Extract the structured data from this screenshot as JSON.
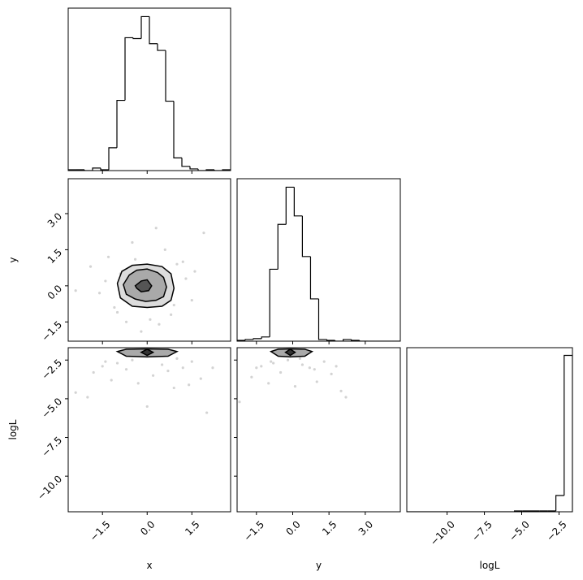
{
  "chart_data": [
    {
      "type": "histogram",
      "xlim": [
        -2.65,
        2.8
      ],
      "ylim": [
        0,
        192
      ],
      "color": "#000000",
      "xticks": [
        {
          "value": -1.5,
          "label": "−1.5"
        },
        {
          "value": 0,
          "label": "0.0"
        },
        1.5
      ],
      "xticklabels": false,
      "bins": [
        -2.65,
        -2.3775,
        -2.105,
        -1.8325,
        -1.56,
        -1.2875,
        -1.015,
        -0.7425,
        -0.47,
        -0.1975,
        0.075,
        0.3475,
        0.62,
        0.8925,
        1.165,
        1.4375,
        1.71,
        1.9825,
        2.255,
        2.5275,
        2.8
      ],
      "values": [
        1,
        1,
        0,
        3,
        1,
        27,
        83,
        157,
        156,
        182,
        150,
        142,
        82,
        15,
        5,
        2,
        0,
        1,
        0,
        1
      ]
    },
    {
      "type": "scatter",
      "ylabel": "y",
      "xlim": [
        -2.65,
        2.8
      ],
      "ylim": [
        -2.3,
        4.45
      ],
      "color": "#808080",
      "xticks": [
        {
          "value": -1.5,
          "label": "−1.5"
        },
        {
          "value": 0,
          "label": "0.0"
        },
        1.5
      ],
      "xticklabels": false,
      "yticks": [
        {
          "value": -1.5,
          "label": "−1.5"
        },
        {
          "value": 0,
          "label": "0.0"
        },
        1.5,
        {
          "value": 3,
          "label": "3.0"
        }
      ],
      "yticklabels": true,
      "x": [
        -1.9,
        -1.6,
        -1.3,
        -1.1,
        -0.9,
        -0.7,
        -0.5,
        -1.4,
        1.2,
        1.5,
        1.0,
        0.8,
        0.3,
        -0.2,
        0.6,
        1.9,
        -2.4,
        1.3,
        0.1,
        -0.4,
        0.9,
        -1.0,
        1.6,
        0.4
      ],
      "y": [
        0.8,
        -0.3,
        1.2,
        -0.9,
        0.5,
        -1.5,
        1.8,
        0.2,
        1.0,
        -0.6,
        0.9,
        -1.2,
        2.4,
        -1.9,
        1.5,
        2.2,
        -0.2,
        0.3,
        -1.4,
        1.1,
        -0.8,
        -1.1,
        0.6,
        -1.6
      ],
      "contours": [
        {
          "fill": "#dcdcdc",
          "x": [
            -1.0,
            -0.85,
            -0.5,
            0.0,
            0.5,
            0.8,
            0.9,
            0.8,
            0.5,
            0.0,
            -0.5,
            -0.9
          ],
          "y": [
            0.1,
            0.6,
            0.85,
            0.9,
            0.8,
            0.5,
            -0.1,
            -0.6,
            -0.85,
            -0.9,
            -0.85,
            -0.5
          ]
        },
        {
          "fill": "#a9a9a9",
          "x": [
            -0.8,
            -0.6,
            -0.35,
            0.0,
            0.35,
            0.55,
            0.65,
            0.55,
            0.3,
            -0.05,
            -0.4,
            -0.7
          ],
          "y": [
            0.05,
            0.45,
            0.65,
            0.7,
            0.55,
            0.35,
            -0.05,
            -0.45,
            -0.6,
            -0.65,
            -0.55,
            -0.35
          ]
        },
        {
          "fill": "#555555",
          "x": [
            -0.4,
            -0.2,
            0.0,
            0.15,
            0.05,
            -0.2,
            -0.35
          ],
          "y": [
            0.0,
            0.2,
            0.25,
            0.0,
            -0.2,
            -0.25,
            -0.1
          ]
        }
      ]
    },
    {
      "type": "histogram",
      "xlim": [
        -2.3,
        4.45
      ],
      "ylim": [
        0,
        192
      ],
      "color": "#000000",
      "xticks": [
        {
          "value": -1.5,
          "label": "−1.5"
        },
        {
          "value": 0,
          "label": "0.0"
        },
        1.5,
        {
          "value": 3,
          "label": "3.0"
        }
      ],
      "xticklabels": false,
      "bins": [
        -2.3,
        -1.9625,
        -1.625,
        -1.2875,
        -0.95,
        -0.6125,
        -0.275,
        0.0625,
        0.4,
        0.7375,
        1.075,
        1.4125,
        1.75,
        2.0875,
        2.425,
        2.7625,
        3.1,
        3.4375,
        3.775,
        4.1125,
        4.45
      ],
      "values": [
        1,
        2,
        3,
        5,
        85,
        138,
        182,
        148,
        100,
        50,
        2,
        1,
        0,
        2,
        1,
        0,
        0,
        0,
        0,
        0
      ]
    },
    {
      "type": "scatter",
      "xlabel": "x",
      "ylabel": "logL",
      "xlim": [
        -2.65,
        2.8
      ],
      "ylim": [
        -12.3,
        -1.7
      ],
      "color": "#808080",
      "xticks": [
        {
          "value": -1.5,
          "label": "−1.5"
        },
        {
          "value": 0,
          "label": "0.0"
        },
        1.5
      ],
      "xticklabels": true,
      "yticks": [
        {
          "value": -10,
          "label": "−10.0"
        },
        {
          "value": -7.5,
          "label": "−7.5"
        },
        {
          "value": -5,
          "label": "−5.0"
        },
        {
          "value": -2.5,
          "label": "−2.5"
        }
      ],
      "yticklabels": true,
      "x": [
        -2.4,
        -1.8,
        -1.5,
        -1.2,
        -1.0,
        -0.7,
        -0.3,
        0.2,
        0.5,
        0.9,
        1.2,
        1.5,
        1.8,
        2.0,
        -0.5,
        0.7,
        1.4,
        -1.4,
        0.0,
        2.2,
        -2.0,
        1.0
      ],
      "y": [
        -4.6,
        -3.3,
        -2.9,
        -3.8,
        -2.7,
        -3.1,
        -4.0,
        -3.5,
        -2.8,
        -4.3,
        -3.0,
        -2.6,
        -3.7,
        -5.9,
        -2.5,
        -3.2,
        -4.1,
        -2.6,
        -5.5,
        -3.0,
        -4.9,
        -2.4
      ],
      "contours": [
        {
          "fill": "#a9a9a9",
          "x": [
            -1.0,
            -0.7,
            0.0,
            0.7,
            1.0,
            0.7,
            0.0,
            -0.7
          ],
          "y": [
            -1.95,
            -1.8,
            -1.78,
            -1.8,
            -1.95,
            -2.25,
            -2.3,
            -2.25
          ]
        },
        {
          "fill": "#333333",
          "x": [
            -0.2,
            0.0,
            0.2,
            0.0
          ],
          "y": [
            -2.0,
            -1.8,
            -2.0,
            -2.2
          ]
        }
      ]
    },
    {
      "type": "scatter",
      "xlabel": "y",
      "xlim": [
        -2.3,
        4.45
      ],
      "ylim": [
        -12.3,
        -1.7
      ],
      "color": "#808080",
      "xticks": [
        {
          "value": -1.5,
          "label": "−1.5"
        },
        {
          "value": 0,
          "label": "0.0"
        },
        1.5,
        {
          "value": 3,
          "label": "3.0"
        }
      ],
      "xticklabels": true,
      "yticks": [
        {
          "value": -10,
          "label": "−10.0"
        },
        {
          "value": -7.5,
          "label": "−7.5"
        },
        {
          "value": -5,
          "label": "−5.0"
        },
        {
          "value": -2.5,
          "label": "−2.5"
        }
      ],
      "yticklabels": false,
      "x": [
        -2.2,
        -1.7,
        -1.3,
        -1.0,
        -0.8,
        -0.5,
        0.1,
        0.4,
        0.7,
        1.0,
        1.3,
        1.6,
        2.0,
        2.2,
        -0.2,
        0.9,
        -1.5,
        0.3,
        1.8,
        -0.9
      ],
      "y": [
        -5.2,
        -3.6,
        -2.9,
        -4.0,
        -2.7,
        -3.3,
        -4.2,
        -2.8,
        -3.0,
        -3.9,
        -2.6,
        -3.4,
        -4.5,
        -4.9,
        -2.5,
        -3.1,
        -3.0,
        -2.4,
        -2.9,
        -2.6
      ],
      "contours": [
        {
          "fill": "#a9a9a9",
          "x": [
            -0.9,
            -0.6,
            -0.1,
            0.5,
            0.8,
            0.5,
            -0.1,
            -0.6
          ],
          "y": [
            -1.95,
            -1.8,
            -1.78,
            -1.8,
            -1.95,
            -2.25,
            -2.3,
            -2.25
          ]
        },
        {
          "fill": "#333333",
          "x": [
            -0.3,
            -0.1,
            0.1,
            -0.1
          ],
          "y": [
            -2.0,
            -1.8,
            -2.0,
            -2.2
          ]
        }
      ]
    },
    {
      "type": "histogram",
      "xlabel": "logL",
      "xlim": [
        -12.7,
        -1.6
      ],
      "ylim": [
        0,
        192
      ],
      "color": "#000000",
      "xticks": [
        {
          "value": -10,
          "label": "−10.0"
        },
        {
          "value": -7.5,
          "label": "−7.5"
        },
        {
          "value": -5,
          "label": "−5.0"
        },
        {
          "value": -2.5,
          "label": "−2.5"
        }
      ],
      "xticklabels": true,
      "bins": [
        -12.7,
        -12.145,
        -11.59,
        -11.035,
        -10.48,
        -9.925,
        -9.37,
        -8.815,
        -8.26,
        -7.705,
        -7.15,
        -6.595,
        -6.04,
        -5.485,
        -4.93,
        -4.375,
        -3.82,
        -3.265,
        -2.71,
        -2.155,
        -1.6
      ],
      "values": [
        0,
        0,
        0,
        0,
        0,
        0,
        0,
        0,
        0,
        0,
        0,
        0,
        0,
        1,
        1,
        1,
        1,
        1,
        19,
        183
      ]
    }
  ]
}
